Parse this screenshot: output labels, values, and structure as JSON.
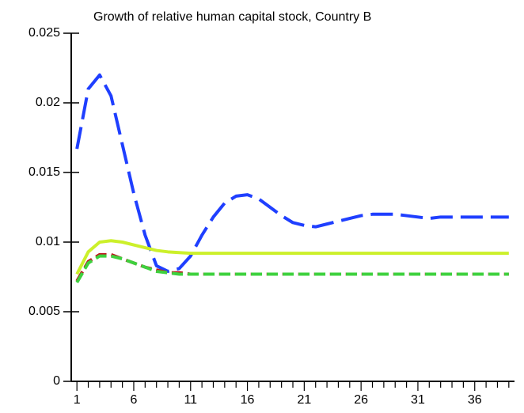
{
  "chart_data": {
    "type": "line",
    "title": "Growth of relative human capital stock, Country B",
    "categories": [
      1,
      null,
      null,
      null,
      null,
      6,
      null,
      null,
      null,
      null,
      11,
      null,
      null,
      null,
      null,
      16,
      null,
      null,
      null,
      null,
      21,
      null,
      null,
      null,
      null,
      26,
      null,
      null,
      null,
      null,
      31,
      null,
      null,
      null,
      null,
      36,
      null,
      null,
      null
    ],
    "ylim": [
      0,
      0.025
    ],
    "yticks": [
      0,
      0.005,
      0.01,
      0.015,
      0.02,
      0.025
    ],
    "series": [
      {
        "color": "#1f3fff",
        "dash": "dashed",
        "values": [
          0.0167,
          0.021,
          0.022,
          0.0205,
          0.017,
          0.0135,
          0.0105,
          0.0083,
          0.0079,
          0.0081,
          0.009,
          0.0105,
          0.0118,
          0.0128,
          0.0133,
          0.0134,
          0.0131,
          0.0125,
          0.0119,
          0.0114,
          0.0112,
          0.0111,
          0.0113,
          0.0115,
          0.0117,
          0.0119,
          0.012,
          0.012,
          0.012,
          0.0119,
          0.0118,
          0.0117,
          0.0118,
          0.0118,
          0.0118,
          0.0118,
          0.0118,
          0.0118,
          0.0118
        ]
      },
      {
        "color": "#ccf02a",
        "dash": "solid",
        "values": [
          0.0077,
          0.0093,
          0.01,
          0.0101,
          0.01,
          0.0098,
          0.0096,
          0.0094,
          0.0093,
          0.00925,
          0.0092,
          0.0092,
          0.0092,
          0.0092,
          0.0092,
          0.0092,
          0.0092,
          0.0092,
          0.0092,
          0.0092,
          0.0092,
          0.0092,
          0.0092,
          0.0092,
          0.0092,
          0.0092,
          0.0092,
          0.0092,
          0.0092,
          0.0092,
          0.0092,
          0.0092,
          0.0092,
          0.0092,
          0.0092,
          0.0092,
          0.0092,
          0.0092,
          0.0092
        ]
      },
      {
        "color": "#c0141e",
        "dash": "dashed",
        "values": [
          0.0072,
          0.0086,
          0.0091,
          0.0091,
          0.0088,
          0.0085,
          0.0082,
          0.008,
          0.0078,
          0.0078,
          0.0077,
          0.0077,
          0.0077,
          0.0077,
          0.0077,
          0.0077,
          0.0077,
          0.0077,
          0.0077,
          0.0077,
          0.0077,
          0.0077,
          0.0077,
          0.0077,
          0.0077,
          0.0077,
          0.0077,
          0.0077,
          0.0077,
          0.0077,
          0.0077,
          0.0077,
          0.0077,
          0.0077,
          0.0077,
          0.0077,
          0.0077,
          0.0077,
          0.0077
        ]
      },
      {
        "color": "#3ed13e",
        "dash": "dashed",
        "values": [
          0.0071,
          0.0085,
          0.009,
          0.009,
          0.0088,
          0.0085,
          0.0082,
          0.0079,
          0.0078,
          0.0077,
          0.0077,
          0.0077,
          0.0077,
          0.0077,
          0.0077,
          0.0077,
          0.0077,
          0.0077,
          0.0077,
          0.0077,
          0.0077,
          0.0077,
          0.0077,
          0.0077,
          0.0077,
          0.0077,
          0.0077,
          0.0077,
          0.0077,
          0.0077,
          0.0077,
          0.0077,
          0.0077,
          0.0077,
          0.0077,
          0.0077,
          0.0077,
          0.0077,
          0.0077
        ]
      }
    ]
  }
}
